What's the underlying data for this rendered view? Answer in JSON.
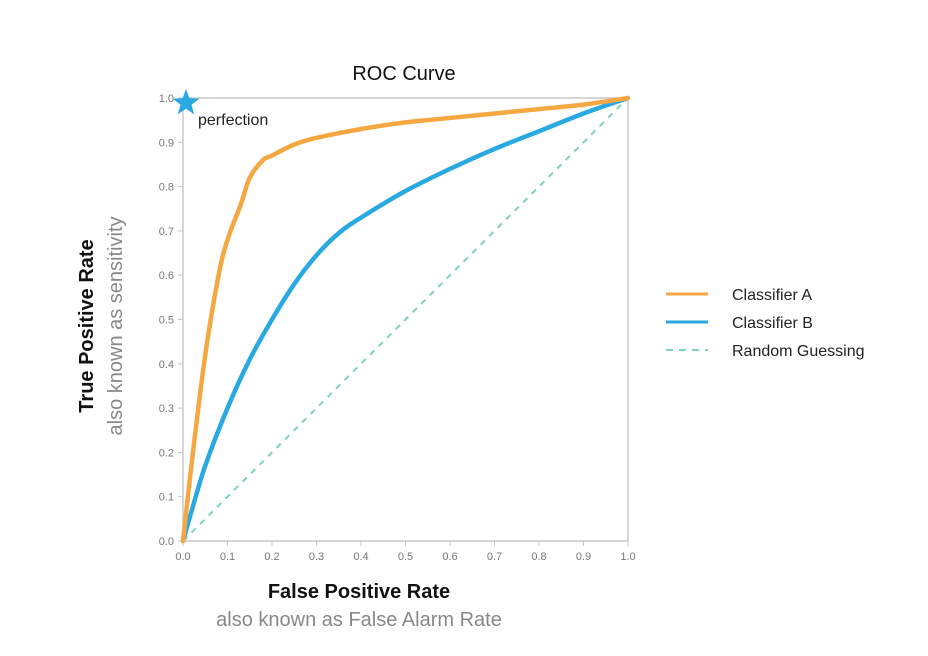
{
  "chart_data": {
    "type": "line",
    "title": "ROC Curve",
    "xlabel": "False Positive Rate",
    "xlabel_sub": "also known as False Alarm Rate",
    "ylabel": "True Positive Rate",
    "ylabel_sub": "also known as sensitivity",
    "xlim": [
      0,
      1
    ],
    "ylim": [
      0,
      1
    ],
    "x_ticks": [
      "0.0",
      "0.1",
      "0.2",
      "0.3",
      "0.4",
      "0.5",
      "0.6",
      "0.7",
      "0.8",
      "0.9",
      "1.0"
    ],
    "y_ticks": [
      "0.0",
      "0.1",
      "0.2",
      "0.3",
      "0.4",
      "0.5",
      "0.6",
      "0.7",
      "0.8",
      "0.9",
      "1.0"
    ],
    "grid": false,
    "legend_position": "right",
    "series": [
      {
        "name": "Classifier A",
        "color": "#F5A742",
        "style": "solid",
        "x": [
          0,
          0.02,
          0.05,
          0.08,
          0.1,
          0.13,
          0.15,
          0.18,
          0.2,
          0.25,
          0.3,
          0.4,
          0.5,
          0.6,
          0.7,
          0.8,
          0.9,
          1.0
        ],
        "y": [
          0,
          0.18,
          0.42,
          0.6,
          0.68,
          0.76,
          0.82,
          0.86,
          0.87,
          0.895,
          0.91,
          0.93,
          0.945,
          0.955,
          0.965,
          0.975,
          0.985,
          1.0
        ]
      },
      {
        "name": "Classifier B",
        "color": "#29A9E1",
        "style": "solid",
        "x": [
          0,
          0.02,
          0.05,
          0.1,
          0.15,
          0.2,
          0.25,
          0.3,
          0.35,
          0.4,
          0.5,
          0.6,
          0.7,
          0.8,
          0.9,
          1.0
        ],
        "y": [
          0,
          0.07,
          0.17,
          0.3,
          0.41,
          0.5,
          0.58,
          0.645,
          0.695,
          0.73,
          0.79,
          0.84,
          0.885,
          0.925,
          0.965,
          1.0
        ]
      },
      {
        "name": "Random Guessing",
        "color": "#7FD3B8",
        "style": "dashed",
        "x": [
          0,
          1
        ],
        "y": [
          0,
          1
        ]
      }
    ],
    "annotations": [
      {
        "text": "perfection",
        "x": 0,
        "y": 1,
        "marker": "star",
        "color": "#29A9E1"
      }
    ]
  }
}
